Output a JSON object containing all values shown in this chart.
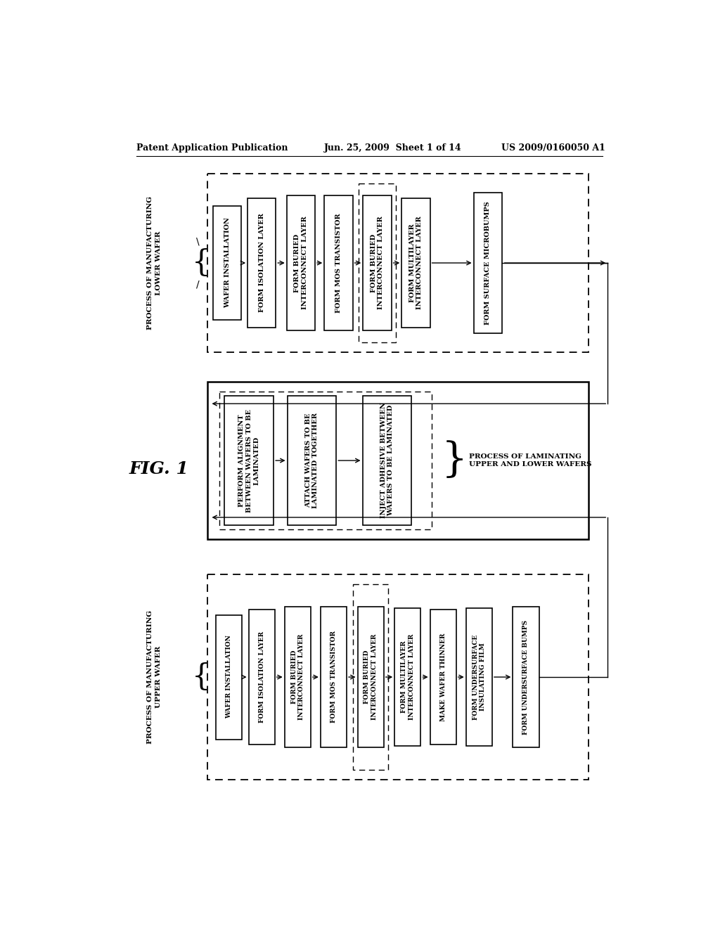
{
  "header_left": "Patent Application Publication",
  "header_center": "Jun. 25, 2009  Sheet 1 of 14",
  "header_right": "US 2009/0160050 A1",
  "fig_label": "FIG. 1",
  "section1_label": "PROCESS OF MANUFACTURING\nLOWER WAFER",
  "section1_boxes": [
    "WAFER INSTALLATION",
    "FORM ISOLATION LAYER",
    "FORM BURIED\nINTERCONNECT LAYER",
    "FORM MOS TRANSISTOR",
    "FORM BURIED\nINTERCONNECT LAYER",
    "FORM MULTILAYER\nINTERCONNECT LAYER",
    "FORM SURFACE MICROBUMPS"
  ],
  "section2_label": "PROCESS OF LAMINATING\nUPPER AND LOWER WAFERS",
  "section2_boxes": [
    "PERFORM ALIGNMENT\nBETWEEN WAFERS TO BE\nLAMINATED",
    "ATTACH WAFERS TO BE\nLAMINATED TOGETHER",
    "INJECT ADHESIVE BETWEEN\nWAFERS TO BE LAMINATED"
  ],
  "section3_label": "PROCESS OF MANUFACTURING\nUPPER WAFER",
  "section3_boxes": [
    "WAFER INSTALLATION",
    "FORM ISOLATION LAYER",
    "FORM BURIED\nINTERCONNECT LAYER",
    "FORM MOS TRANSISTOR",
    "FORM BURIED\nINTERCONNECT LAYER",
    "FORM MULTILAYER\nINTERCONNECT LAYER",
    "MAKE WAFER THINNER",
    "FORM UNDERSURFACE\nINSULATING FILM",
    "FORM UNDERSURFACE BUMPS"
  ],
  "bg_color": "#ffffff",
  "text_color": "#000000"
}
